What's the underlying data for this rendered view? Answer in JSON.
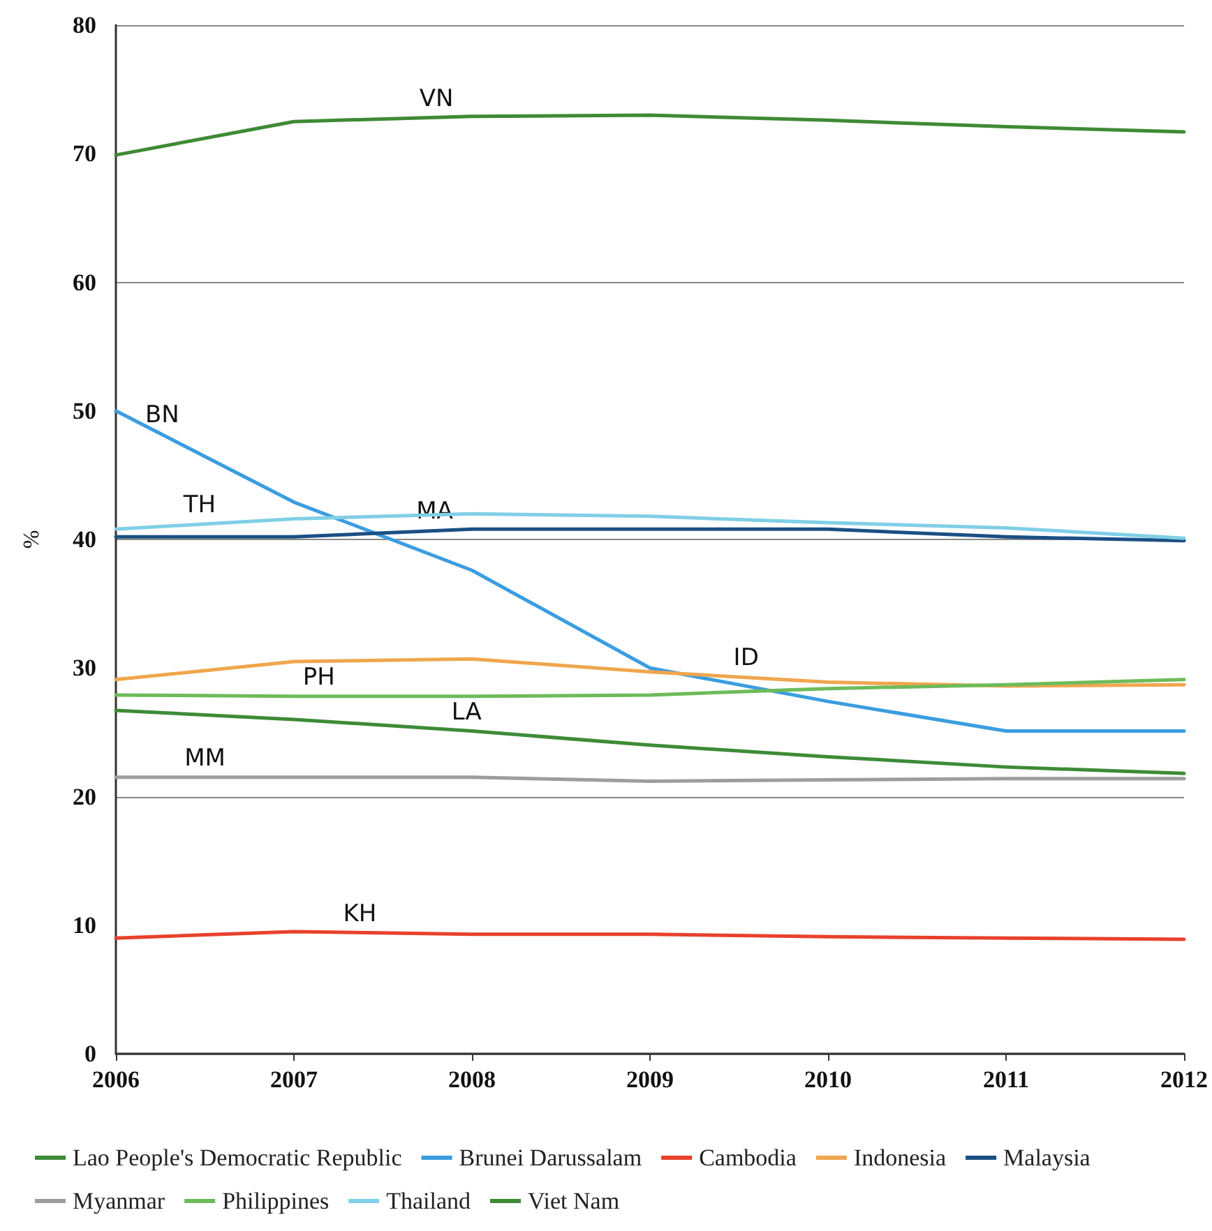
{
  "chart_data": {
    "type": "line",
    "ylabel": "%",
    "x": [
      2006,
      2007,
      2008,
      2009,
      2010,
      2011,
      2012
    ],
    "xlim": [
      2006,
      2012
    ],
    "xticks": [
      2006,
      2007,
      2008,
      2009,
      2010,
      2011,
      2012
    ],
    "ylim": [
      0,
      80
    ],
    "yticks": [
      0,
      10,
      20,
      30,
      40,
      50,
      60,
      70,
      80
    ],
    "grid": "y",
    "legend": "bottom",
    "marker": "none",
    "line_style": "solid",
    "series": [
      {
        "name": "Lao People's Democratic Republic",
        "color": "#3d8b37",
        "values": [
          26.7,
          26.0,
          25.1,
          24.0,
          23.1,
          22.3,
          21.8
        ]
      },
      {
        "name": "Brunei Darussalam",
        "color": "#3b9de1",
        "values": [
          50.0,
          42.9,
          37.6,
          30.0,
          27.4,
          25.1,
          25.1
        ]
      },
      {
        "name": "Cambodia",
        "color": "#e8412c",
        "values": [
          9.0,
          9.5,
          9.3,
          9.3,
          9.1,
          9.0,
          8.9
        ]
      },
      {
        "name": "Indonesia",
        "color": "#f0a64e",
        "values": [
          29.1,
          30.5,
          30.7,
          29.7,
          28.9,
          28.6,
          28.7
        ]
      },
      {
        "name": "Malaysia",
        "color": "#1b4f84",
        "values": [
          40.2,
          40.2,
          40.8,
          40.8,
          40.8,
          40.2,
          39.9
        ]
      },
      {
        "name": "Myanmar",
        "color": "#9d9d9d",
        "values": [
          21.5,
          21.5,
          21.5,
          21.2,
          21.3,
          21.4,
          21.4
        ]
      },
      {
        "name": "Philippines",
        "color": "#6dbb5a",
        "values": [
          27.9,
          27.8,
          27.8,
          27.9,
          28.4,
          28.7,
          29.1
        ]
      },
      {
        "name": "Thailand",
        "color": "#7fcfe6",
        "values": [
          40.8,
          41.6,
          42.0,
          41.8,
          41.3,
          40.9,
          40.1
        ]
      },
      {
        "name": "Viet Nam",
        "color": "#3f8a35",
        "values": [
          69.9,
          72.5,
          72.9,
          73.0,
          72.6,
          72.1,
          71.7
        ]
      }
    ],
    "annotations": [
      {
        "text": "VN",
        "x": 2007.8,
        "y": 72.8
      },
      {
        "text": "BN",
        "x": 2006.26,
        "y": 48.2
      },
      {
        "text": "TH",
        "x": 2006.47,
        "y": 41.2
      },
      {
        "text": "MA",
        "x": 2007.79,
        "y": 40.7
      },
      {
        "text": "ID",
        "x": 2009.54,
        "y": 29.3
      },
      {
        "text": "PH",
        "x": 2007.14,
        "y": 27.8
      },
      {
        "text": "LA",
        "x": 2007.97,
        "y": 25.1
      },
      {
        "text": "MM",
        "x": 2006.5,
        "y": 21.5
      },
      {
        "text": "KH",
        "x": 2007.37,
        "y": 9.4
      }
    ]
  }
}
